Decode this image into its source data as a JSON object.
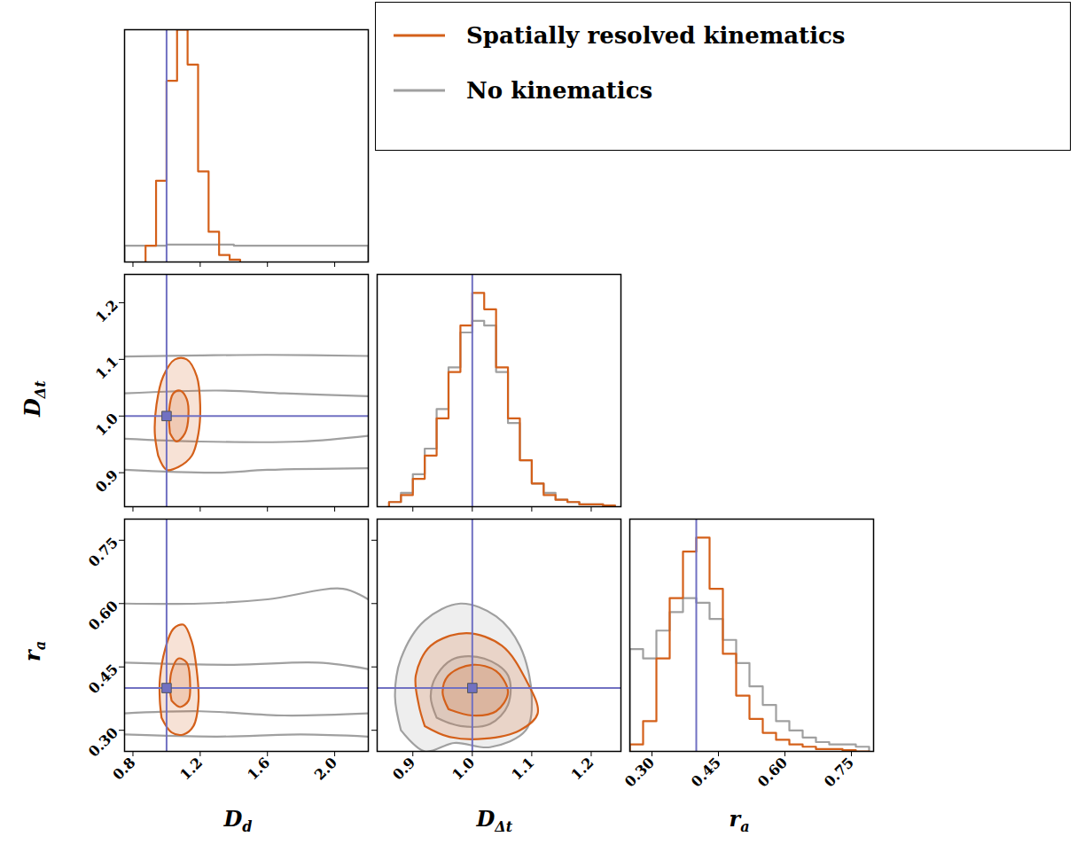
{
  "chart_data": {
    "type": "corner",
    "legend": "top-right",
    "ylim": [
      0,
      1
    ],
    "truth": {
      "color": "#7171c2",
      "marker": "square"
    },
    "parameters": [
      {
        "label": "Dd",
        "lim": [
          0.75,
          2.2
        ],
        "ticks": [
          0.8,
          1.2,
          1.6,
          {
            "value": 2,
            "label": "2.0"
          }
        ],
        "truth": 1.0
      },
      {
        "label": "DΔt",
        "lim": [
          0.84,
          1.25
        ],
        "ticks": [
          0.9,
          {
            "value": 1,
            "label": "1.0"
          },
          1.1,
          1.2
        ],
        "truth": 1.0
      },
      {
        "label": "ra",
        "lim": [
          0.25,
          0.8
        ],
        "ticks": [
          {
            "value": 0.3,
            "label": "0.30"
          },
          0.45,
          {
            "value": 0.6,
            "label": "0.60"
          },
          0.75
        ],
        "truth": 0.4
      }
    ],
    "series": [
      {
        "name": "Spatially resolved kinematics",
        "color": "#d4601a",
        "histograms": [
          {
            "bins": [
              0.875,
              0.9375,
              1.0,
              1.0625,
              1.125,
              1.1875,
              1.25,
              1.3125,
              1.375,
              1.4375
            ],
            "counts": [
              0.07,
              0.35,
              0.78,
              1.0,
              0.85,
              0.39,
              0.13,
              0.03,
              0.01
            ]
          },
          {
            "bins": [
              0.86,
              0.88,
              0.9,
              0.92,
              0.94,
              0.96,
              0.98,
              1.0,
              1.02,
              1.04,
              1.06,
              1.08,
              1.1,
              1.12,
              1.14,
              1.16,
              1.18,
              1.2,
              1.22,
              1.24
            ],
            "counts": [
              0.02,
              0.05,
              0.12,
              0.22,
              0.38,
              0.58,
              0.78,
              0.92,
              0.85,
              0.6,
              0.38,
              0.2,
              0.1,
              0.05,
              0.03,
              0.02,
              0.01,
              0.01,
              0.005
            ]
          },
          {
            "bins": [
              0.25,
              0.28,
              0.31,
              0.34,
              0.37,
              0.4,
              0.43,
              0.46,
              0.49,
              0.52,
              0.55,
              0.58,
              0.61,
              0.64,
              0.67,
              0.7,
              0.73,
              0.76,
              0.79
            ],
            "counts": [
              0.03,
              0.13,
              0.4,
              0.66,
              0.86,
              0.92,
              0.7,
              0.42,
              0.24,
              0.14,
              0.08,
              0.05,
              0.03,
              0.02,
              0.01,
              0.01,
              0.005,
              0
            ]
          }
        ],
        "contours": [
          {
            "x": "Dd",
            "y": "DΔt",
            "levels": [
              [
                [
                  0.95,
                  0.93
                ],
                [
                  1.0,
                  0.905
                ],
                [
                  1.07,
                  0.91
                ],
                [
                  1.15,
                  0.93
                ],
                [
                  1.19,
                  0.97
                ],
                [
                  1.2,
                  1.02
                ],
                [
                  1.18,
                  1.07
                ],
                [
                  1.12,
                  1.1
                ],
                [
                  1.05,
                  1.1
                ],
                [
                  0.98,
                  1.07
                ],
                [
                  0.94,
                  1.02
                ],
                [
                  0.93,
                  0.97
                ],
                [
                  0.95,
                  0.93
                ]
              ],
              [
                [
                  1.02,
                  0.97
                ],
                [
                  1.06,
                  0.955
                ],
                [
                  1.11,
                  0.97
                ],
                [
                  1.13,
                  1.0
                ],
                [
                  1.12,
                  1.03
                ],
                [
                  1.08,
                  1.045
                ],
                [
                  1.04,
                  1.04
                ],
                [
                  1.015,
                  1.01
                ],
                [
                  1.02,
                  0.97
                ]
              ]
            ]
          },
          {
            "x": "Dd",
            "y": "ra",
            "levels": [
              [
                [
                  0.97,
                  0.33
                ],
                [
                  1.03,
                  0.295
                ],
                [
                  1.1,
                  0.29
                ],
                [
                  1.16,
                  0.31
                ],
                [
                  1.19,
                  0.37
                ],
                [
                  1.18,
                  0.44
                ],
                [
                  1.15,
                  0.51
                ],
                [
                  1.1,
                  0.55
                ],
                [
                  1.04,
                  0.54
                ],
                [
                  0.99,
                  0.49
                ],
                [
                  0.96,
                  0.42
                ],
                [
                  0.96,
                  0.37
                ],
                [
                  0.97,
                  0.33
                ]
              ],
              [
                [
                  1.03,
                  0.37
                ],
                [
                  1.08,
                  0.355
                ],
                [
                  1.13,
                  0.37
                ],
                [
                  1.14,
                  0.41
                ],
                [
                  1.12,
                  0.46
                ],
                [
                  1.07,
                  0.47
                ],
                [
                  1.03,
                  0.44
                ],
                [
                  1.02,
                  0.4
                ],
                [
                  1.03,
                  0.37
                ]
              ]
            ]
          },
          {
            "x": "DΔt",
            "y": "ra",
            "levels": [
              [
                [
                  0.92,
                  0.31
                ],
                [
                  0.96,
                  0.285
                ],
                [
                  1.02,
                  0.28
                ],
                [
                  1.08,
                  0.3
                ],
                [
                  1.11,
                  0.34
                ],
                [
                  1.09,
                  0.42
                ],
                [
                  1.05,
                  0.5
                ],
                [
                  0.99,
                  0.53
                ],
                [
                  0.93,
                  0.5
                ],
                [
                  0.905,
                  0.43
                ],
                [
                  0.91,
                  0.36
                ],
                [
                  0.92,
                  0.31
                ]
              ],
              [
                [
                  0.96,
                  0.35
                ],
                [
                  1.0,
                  0.335
                ],
                [
                  1.04,
                  0.345
                ],
                [
                  1.06,
                  0.39
                ],
                [
                  1.04,
                  0.44
                ],
                [
                  1.0,
                  0.455
                ],
                [
                  0.96,
                  0.43
                ],
                [
                  0.95,
                  0.39
                ],
                [
                  0.96,
                  0.35
                ]
              ]
            ]
          }
        ]
      },
      {
        "name": "No kinematics",
        "color": "#a0a0a0",
        "histograms": [
          {
            "bins": [
              0.75,
              1.0,
              1.4,
              1.8,
              2.2
            ],
            "counts": [
              0.07,
              0.075,
              0.07,
              0.07
            ]
          },
          {
            "bins": [
              0.86,
              0.88,
              0.9,
              0.92,
              0.94,
              0.96,
              0.98,
              1.0,
              1.02,
              1.04,
              1.06,
              1.08,
              1.1,
              1.12,
              1.14,
              1.16,
              1.18,
              1.2,
              1.22,
              1.24
            ],
            "counts": [
              0.02,
              0.06,
              0.14,
              0.25,
              0.42,
              0.6,
              0.75,
              0.8,
              0.78,
              0.58,
              0.36,
              0.2,
              0.1,
              0.06,
              0.03,
              0.02,
              0.01,
              0.01,
              0.005
            ]
          },
          {
            "bins": [
              0.25,
              0.28,
              0.31,
              0.34,
              0.37,
              0.4,
              0.43,
              0.46,
              0.49,
              0.52,
              0.55,
              0.58,
              0.61,
              0.64,
              0.67,
              0.7,
              0.73,
              0.76,
              0.79
            ],
            "counts": [
              0.44,
              0.4,
              0.52,
              0.6,
              0.66,
              0.64,
              0.57,
              0.48,
              0.38,
              0.28,
              0.2,
              0.13,
              0.09,
              0.06,
              0.04,
              0.03,
              0.03,
              0.02
            ]
          }
        ],
        "contours": [
          {
            "x": "Dd",
            "y": "DΔt",
            "levels": [
              [
                [
                  0.75,
                  1.105
                ],
                [
                  1.2,
                  1.107
                ],
                [
                  1.6,
                  1.108
                ],
                [
                  2.2,
                  1.106
                ]
              ],
              [
                [
                  0.75,
                  0.905
                ],
                [
                  1.3,
                  0.9
                ],
                [
                  1.6,
                  0.905
                ],
                [
                  2.2,
                  0.908
                ]
              ],
              [
                [
                  0.75,
                  1.04
                ],
                [
                  1.3,
                  1.045
                ],
                [
                  1.7,
                  1.04
                ],
                [
                  2.2,
                  1.035
                ]
              ],
              [
                [
                  0.75,
                  0.96
                ],
                [
                  1.2,
                  0.955
                ],
                [
                  1.8,
                  0.955
                ],
                [
                  2.2,
                  0.965
                ]
              ]
            ]
          },
          {
            "x": "Dd",
            "y": "ra",
            "levels": [
              [
                [
                  0.75,
                  0.6
                ],
                [
                  1.2,
                  0.6
                ],
                [
                  1.6,
                  0.61
                ],
                [
                  2.05,
                  0.635
                ],
                [
                  2.2,
                  0.61
                ]
              ],
              [
                [
                  0.75,
                  0.29
                ],
                [
                  1.3,
                  0.285
                ],
                [
                  1.8,
                  0.29
                ],
                [
                  2.2,
                  0.285
                ]
              ],
              [
                [
                  0.75,
                  0.46
                ],
                [
                  1.4,
                  0.455
                ],
                [
                  1.9,
                  0.46
                ],
                [
                  2.2,
                  0.445
                ]
              ],
              [
                [
                  0.75,
                  0.34
                ],
                [
                  1.2,
                  0.345
                ],
                [
                  1.7,
                  0.335
                ],
                [
                  2.2,
                  0.34
                ]
              ]
            ]
          },
          {
            "x": "DΔt",
            "y": "ra",
            "levels": [
              [
                [
                  0.88,
                  0.3
                ],
                [
                  0.92,
                  0.25
                ],
                [
                  0.97,
                  0.27
                ],
                [
                  1.03,
                  0.26
                ],
                [
                  1.09,
                  0.3
                ],
                [
                  1.1,
                  0.38
                ],
                [
                  1.08,
                  0.5
                ],
                [
                  1.04,
                  0.57
                ],
                [
                  0.98,
                  0.6
                ],
                [
                  0.92,
                  0.56
                ],
                [
                  0.88,
                  0.47
                ],
                [
                  0.87,
                  0.38
                ],
                [
                  0.88,
                  0.3
                ]
              ],
              [
                [
                  0.94,
                  0.33
                ],
                [
                  0.98,
                  0.31
                ],
                [
                  1.03,
                  0.315
                ],
                [
                  1.06,
                  0.36
                ],
                [
                  1.06,
                  0.43
                ],
                [
                  1.02,
                  0.47
                ],
                [
                  0.97,
                  0.47
                ],
                [
                  0.94,
                  0.43
                ],
                [
                  0.93,
                  0.38
                ],
                [
                  0.94,
                  0.33
                ]
              ]
            ]
          }
        ]
      }
    ]
  }
}
